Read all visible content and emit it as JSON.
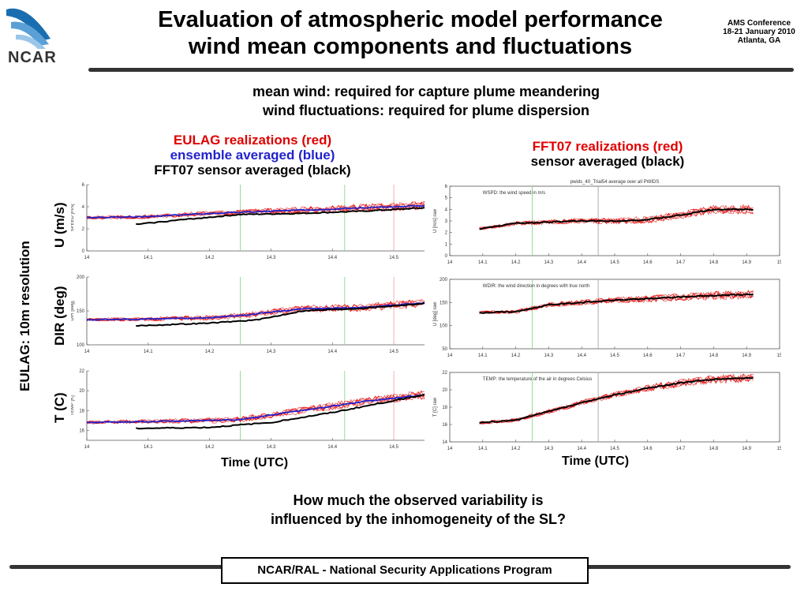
{
  "header": {
    "logo_text": "NCAR",
    "title_line1": "Evaluation of atmospheric model performance",
    "title_line2": "wind mean components and fluctuations",
    "conference_line1": "AMS Conference",
    "conference_line2": "18-21 January 2010",
    "conference_line3": "Atlanta, GA"
  },
  "subtitle": {
    "line1": "mean wind: required for capture plume meandering",
    "line2": "wind fluctuations: required for plume dispersion"
  },
  "left_legend": {
    "line1": "EULAG realizations (red)",
    "line2": "ensemble averaged (blue)",
    "line3": "FFT07 sensor averaged (black)"
  },
  "right_legend": {
    "line1": "FFT07 realizations (red)",
    "line2": "sensor  averaged (black)"
  },
  "row_labels": {
    "side": "EULAG: 10m resolution",
    "speed": "U (m/s)",
    "dir": "DIR (deg)",
    "temp": "T (C)"
  },
  "x_axis_label": "Time (UTC)",
  "question": {
    "line1": "How much the observed variability is",
    "line2": "influenced by the inhomogeneity of the SL?"
  },
  "footer": "NCAR/RAL  - National Security Applications Program",
  "colors": {
    "realizations": "#e00000",
    "ensemble": "#2222cc",
    "sensor": "#000000",
    "rule": "#333333"
  },
  "chart_data": [
    {
      "type": "line",
      "panel": "eulag-speed",
      "ylabel": "SPEED [m/s]",
      "xlim": [
        14,
        14.55
      ],
      "ylim": [
        0,
        6
      ],
      "xticks": [
        "14",
        "14.1",
        "14.2",
        "14.3",
        "14.4",
        "14.5"
      ],
      "yticks": [
        "0",
        "2",
        "4",
        "6"
      ],
      "vlines": [
        {
          "x": 14.25,
          "color": "green"
        },
        {
          "x": 14.42,
          "color": "green"
        },
        {
          "x": 14.5,
          "color": "red"
        }
      ],
      "series": [
        {
          "role": "realizations",
          "x": [
            14,
            14.1,
            14.2,
            14.3,
            14.4,
            14.55
          ],
          "y": [
            3.0,
            3.1,
            3.4,
            3.6,
            3.8,
            4.1
          ]
        },
        {
          "role": "ensemble",
          "x": [
            14,
            14.1,
            14.2,
            14.3,
            14.4,
            14.55
          ],
          "y": [
            3.0,
            3.1,
            3.4,
            3.6,
            3.8,
            4.1
          ]
        },
        {
          "role": "sensor",
          "x": [
            14.08,
            14.15,
            14.25,
            14.35,
            14.45,
            14.55
          ],
          "y": [
            2.4,
            2.8,
            3.3,
            3.4,
            3.6,
            3.9
          ]
        }
      ]
    },
    {
      "type": "line",
      "panel": "eulag-dir",
      "ylabel": "DIR [deg]",
      "xlim": [
        14,
        14.55
      ],
      "ylim": [
        100,
        200
      ],
      "xticks": [
        "14",
        "14.1",
        "14.2",
        "14.3",
        "14.4",
        "14.5"
      ],
      "yticks": [
        "100",
        "150",
        "200"
      ],
      "vlines": [
        {
          "x": 14.25,
          "color": "green"
        },
        {
          "x": 14.42,
          "color": "green"
        },
        {
          "x": 14.5,
          "color": "red"
        }
      ],
      "series": [
        {
          "role": "realizations",
          "x": [
            14,
            14.1,
            14.2,
            14.25,
            14.35,
            14.45,
            14.55
          ],
          "y": [
            137,
            138,
            140,
            143,
            153,
            155,
            162
          ]
        },
        {
          "role": "ensemble",
          "x": [
            14,
            14.1,
            14.2,
            14.25,
            14.35,
            14.45,
            14.55
          ],
          "y": [
            137,
            138,
            140,
            143,
            153,
            155,
            162
          ]
        },
        {
          "role": "sensor",
          "x": [
            14.08,
            14.2,
            14.28,
            14.35,
            14.45,
            14.55
          ],
          "y": [
            128,
            132,
            137,
            150,
            154,
            161
          ]
        }
      ]
    },
    {
      "type": "line",
      "panel": "eulag-temp",
      "ylabel": "TEMP [K]",
      "xlim": [
        14,
        14.55
      ],
      "ylim": [
        15,
        22
      ],
      "xticks": [
        "14",
        "14.1",
        "14.2",
        "14.3",
        "14.4",
        "14.5"
      ],
      "yticks": [
        "16",
        "18",
        "20",
        "22"
      ],
      "vlines": [
        {
          "x": 14.25,
          "color": "green"
        },
        {
          "x": 14.42,
          "color": "green"
        },
        {
          "x": 14.5,
          "color": "red"
        }
      ],
      "series": [
        {
          "role": "realizations",
          "x": [
            14,
            14.1,
            14.2,
            14.25,
            14.35,
            14.45,
            14.55
          ],
          "y": [
            16.8,
            16.9,
            17.0,
            17.1,
            18.0,
            18.9,
            19.6
          ]
        },
        {
          "role": "ensemble",
          "x": [
            14,
            14.1,
            14.2,
            14.25,
            14.35,
            14.45,
            14.55
          ],
          "y": [
            16.8,
            16.9,
            17.0,
            17.1,
            18.0,
            18.9,
            19.6
          ]
        },
        {
          "role": "sensor",
          "x": [
            14.08,
            14.2,
            14.3,
            14.4,
            14.5,
            14.55
          ],
          "y": [
            16.2,
            16.3,
            16.8,
            17.8,
            19.0,
            19.6
          ]
        }
      ]
    },
    {
      "type": "line",
      "panel": "fft07-speed",
      "title": "pwids_40_Trial54 average over all PWIDS",
      "annotation": "WSPD: the wind speed in m/s",
      "ylabel": "U [m/s]   raw",
      "xlim": [
        14,
        15
      ],
      "ylim": [
        0,
        6
      ],
      "xticks": [
        "14",
        "14.1",
        "14.2",
        "14.3",
        "14.4",
        "14.5",
        "14.6",
        "14.7",
        "14.8",
        "14.9",
        "15"
      ],
      "yticks": [
        "0",
        "1",
        "2",
        "3",
        "4",
        "5",
        "6"
      ],
      "vlines": [
        {
          "x": 14.25,
          "color": "green"
        },
        {
          "x": 14.45,
          "color": "gray"
        }
      ],
      "series": [
        {
          "role": "realizations",
          "x": [
            14.09,
            14.2,
            14.3,
            14.4,
            14.5,
            14.6,
            14.7,
            14.8,
            14.92
          ],
          "y": [
            2.3,
            2.8,
            2.9,
            3.0,
            3.0,
            3.1,
            3.5,
            4.0,
            4.0
          ]
        },
        {
          "role": "sensor",
          "x": [
            14.09,
            14.2,
            14.3,
            14.4,
            14.5,
            14.6,
            14.7,
            14.8,
            14.92
          ],
          "y": [
            2.3,
            2.8,
            2.9,
            3.0,
            3.0,
            3.1,
            3.5,
            4.0,
            4.0
          ]
        }
      ]
    },
    {
      "type": "line",
      "panel": "fft07-dir",
      "annotation": "WDIR: the wind direction in degrees with true north",
      "ylabel": "U [deg]   raw",
      "xlim": [
        14,
        15
      ],
      "ylim": [
        50,
        200
      ],
      "xticks": [
        "14",
        "14.1",
        "14.2",
        "14.3",
        "14.4",
        "14.5",
        "14.6",
        "14.7",
        "14.8",
        "14.9",
        "15"
      ],
      "yticks": [
        "50",
        "100",
        "150",
        "200"
      ],
      "vlines": [
        {
          "x": 14.25,
          "color": "green"
        },
        {
          "x": 14.45,
          "color": "gray"
        }
      ],
      "series": [
        {
          "role": "realizations",
          "x": [
            14.09,
            14.2,
            14.3,
            14.4,
            14.5,
            14.6,
            14.7,
            14.8,
            14.92
          ],
          "y": [
            128,
            130,
            145,
            150,
            155,
            158,
            162,
            165,
            168
          ]
        },
        {
          "role": "sensor",
          "x": [
            14.09,
            14.2,
            14.3,
            14.4,
            14.5,
            14.6,
            14.7,
            14.8,
            14.92
          ],
          "y": [
            128,
            130,
            145,
            150,
            155,
            158,
            162,
            165,
            168
          ]
        }
      ]
    },
    {
      "type": "line",
      "panel": "fft07-temp",
      "annotation": "TEMP: the temperature of the air in degrees Celsius",
      "ylabel": "T [C]   raw",
      "xlim": [
        14,
        15
      ],
      "ylim": [
        14,
        22
      ],
      "xticks": [
        "14",
        "14.1",
        "14.2",
        "14.3",
        "14.4",
        "14.5",
        "14.6",
        "14.7",
        "14.8",
        "14.9",
        "15"
      ],
      "yticks": [
        "14",
        "16",
        "18",
        "20",
        "22"
      ],
      "vlines": [
        {
          "x": 14.25,
          "color": "green"
        },
        {
          "x": 14.45,
          "color": "gray"
        }
      ],
      "series": [
        {
          "role": "realizations",
          "x": [
            14.09,
            14.2,
            14.3,
            14.4,
            14.5,
            14.6,
            14.7,
            14.8,
            14.92
          ],
          "y": [
            16.2,
            16.5,
            17.5,
            18.5,
            19.4,
            20.2,
            20.8,
            21.2,
            21.4
          ]
        },
        {
          "role": "sensor",
          "x": [
            14.09,
            14.2,
            14.3,
            14.4,
            14.5,
            14.6,
            14.7,
            14.8,
            14.92
          ],
          "y": [
            16.2,
            16.5,
            17.5,
            18.5,
            19.4,
            20.2,
            20.8,
            21.2,
            21.4
          ]
        }
      ]
    }
  ]
}
